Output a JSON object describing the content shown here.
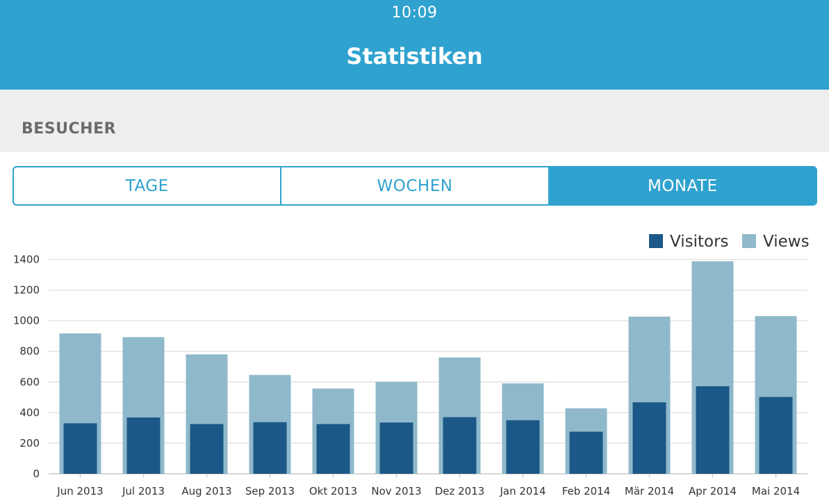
{
  "status_bar": {
    "time": "10:09"
  },
  "header": {
    "title": "Statistiken"
  },
  "section": {
    "title": "BESUCHER"
  },
  "segments": [
    {
      "label": "TAGE",
      "active": false
    },
    {
      "label": "WOCHEN",
      "active": false
    },
    {
      "label": "MONATE",
      "active": true
    }
  ],
  "colors": {
    "accent": "#2fa2cf",
    "visitors": "#1b5888",
    "views": "#8fb9cb"
  },
  "chart_data": {
    "type": "bar",
    "categories": [
      "Jun 2013",
      "Jul 2013",
      "Aug 2013",
      "Sep 2013",
      "Okt 2013",
      "Nov 2013",
      "Dez 2013",
      "Jan 2014",
      "Feb 2014",
      "Mär 2014",
      "Apr 2014",
      "Mai 2014"
    ],
    "series": [
      {
        "name": "Visitors",
        "values": [
          330,
          368,
          325,
          337,
          325,
          335,
          370,
          350,
          275,
          467,
          572,
          502
        ]
      },
      {
        "name": "Views",
        "values": [
          917,
          893,
          780,
          646,
          557,
          601,
          760,
          591,
          428,
          1027,
          1388,
          1030
        ]
      }
    ],
    "yticks": [
      0,
      200,
      400,
      600,
      800,
      1000,
      1200,
      1400
    ],
    "ylim": [
      0,
      1400
    ],
    "legend": "top-right",
    "grid": true,
    "title": "",
    "xlabel": "",
    "ylabel": ""
  }
}
